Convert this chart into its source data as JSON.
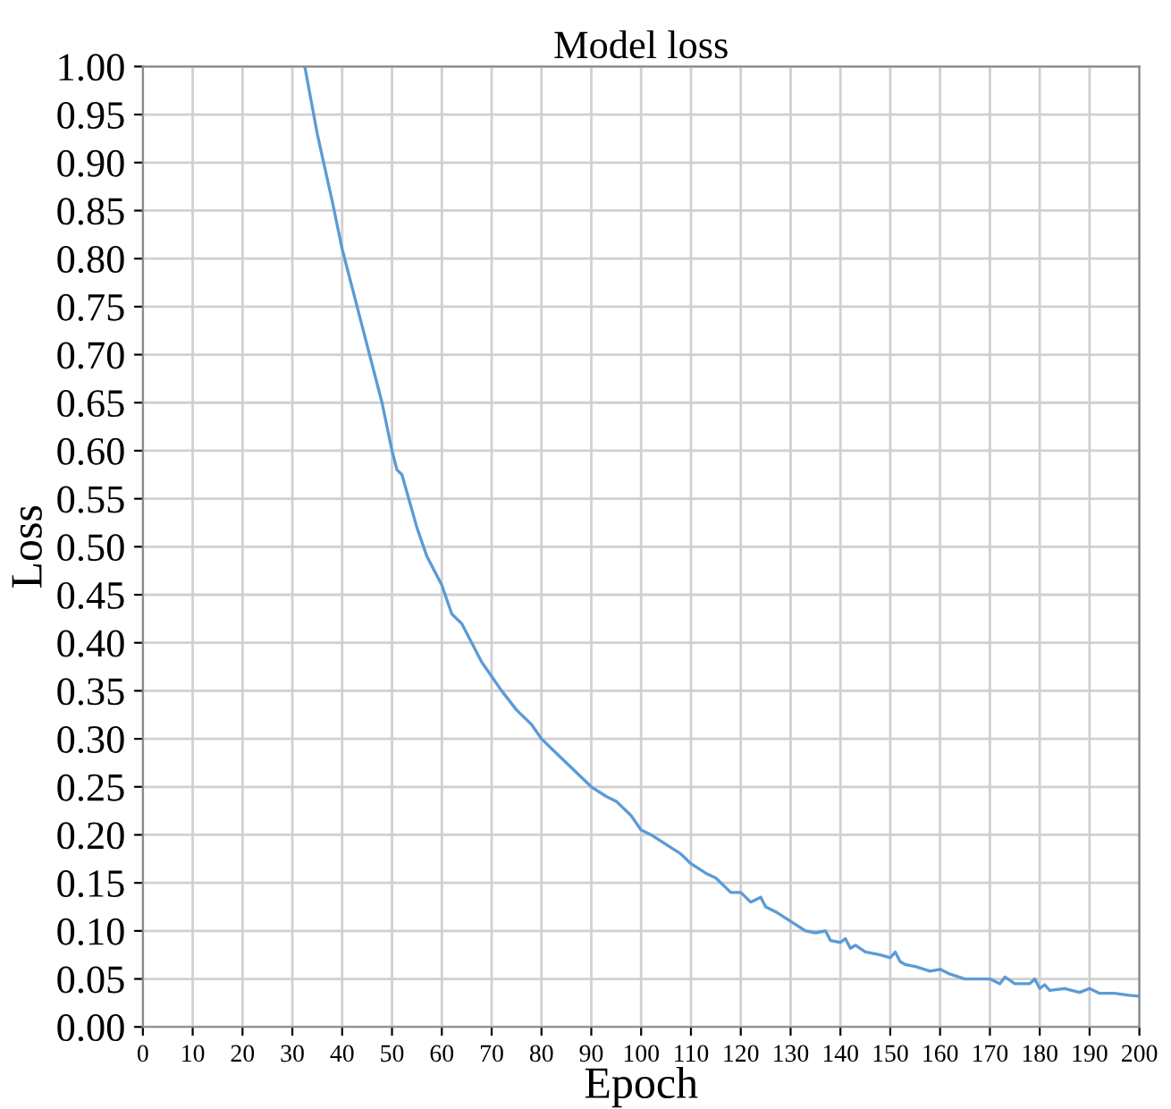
{
  "chart_data": {
    "type": "line",
    "title": "Model loss",
    "xlabel": "Epoch",
    "ylabel": "Loss",
    "x": [
      32.5,
      35,
      38,
      40,
      42,
      45,
      48,
      50,
      51,
      52,
      55,
      57,
      60,
      62,
      64,
      65,
      68,
      70,
      72,
      75,
      78,
      80,
      83,
      85,
      88,
      90,
      93,
      95,
      98,
      100,
      102,
      105,
      108,
      110,
      113,
      115,
      118,
      120,
      122,
      124,
      125,
      127,
      130,
      133,
      135,
      137,
      138,
      140,
      141,
      142,
      143,
      145,
      148,
      150,
      151,
      152,
      153,
      155,
      158,
      160,
      162,
      165,
      168,
      170,
      172,
      173,
      175,
      178,
      179,
      180,
      181,
      182,
      185,
      188,
      190,
      192,
      195,
      198,
      200
    ],
    "series": [
      {
        "color": "#5b9bd5",
        "values": [
          1.0,
          0.93,
          0.86,
          0.81,
          0.77,
          0.71,
          0.65,
          0.6,
          0.58,
          0.575,
          0.52,
          0.49,
          0.46,
          0.43,
          0.42,
          0.41,
          0.38,
          0.365,
          0.35,
          0.33,
          0.315,
          0.3,
          0.285,
          0.275,
          0.26,
          0.25,
          0.24,
          0.235,
          0.22,
          0.205,
          0.2,
          0.19,
          0.18,
          0.17,
          0.16,
          0.155,
          0.14,
          0.14,
          0.13,
          0.135,
          0.125,
          0.12,
          0.11,
          0.1,
          0.098,
          0.1,
          0.09,
          0.088,
          0.092,
          0.082,
          0.085,
          0.078,
          0.075,
          0.072,
          0.078,
          0.068,
          0.065,
          0.063,
          0.058,
          0.06,
          0.055,
          0.05,
          0.05,
          0.05,
          0.045,
          0.052,
          0.045,
          0.045,
          0.05,
          0.04,
          0.044,
          0.038,
          0.04,
          0.036,
          0.04,
          0.035,
          0.035,
          0.033,
          0.032
        ]
      }
    ],
    "xlim": [
      0,
      200
    ],
    "xticks": [
      0,
      10,
      20,
      30,
      40,
      50,
      60,
      70,
      80,
      90,
      100,
      110,
      120,
      130,
      140,
      150,
      160,
      170,
      180,
      190,
      200
    ],
    "ylim": [
      0,
      1
    ],
    "yticks": [
      {
        "value": 0,
        "label": "0.00"
      },
      {
        "value": 0.05,
        "label": "0.05"
      },
      {
        "value": 0.1,
        "label": "0.10"
      },
      {
        "value": 0.15,
        "label": "0.15"
      },
      {
        "value": 0.2,
        "label": "0.20"
      },
      {
        "value": 0.25,
        "label": "0.25"
      },
      {
        "value": 0.3,
        "label": "0.30"
      },
      {
        "value": 0.35,
        "label": "0.35"
      },
      {
        "value": 0.4,
        "label": "0.40"
      },
      {
        "value": 0.45,
        "label": "0.45"
      },
      {
        "value": 0.5,
        "label": "0.50"
      },
      {
        "value": 0.55,
        "label": "0.55"
      },
      {
        "value": 0.6,
        "label": "0.60"
      },
      {
        "value": 0.65,
        "label": "0.65"
      },
      {
        "value": 0.7,
        "label": "0.70"
      },
      {
        "value": 0.75,
        "label": "0.75"
      },
      {
        "value": 0.8,
        "label": "0.80"
      },
      {
        "value": 0.85,
        "label": "0.85"
      },
      {
        "value": 0.9,
        "label": "0.90"
      },
      {
        "value": 0.95,
        "label": "0.95"
      },
      {
        "value": 1,
        "label": "1.00"
      }
    ],
    "grid": true,
    "legend": false
  }
}
